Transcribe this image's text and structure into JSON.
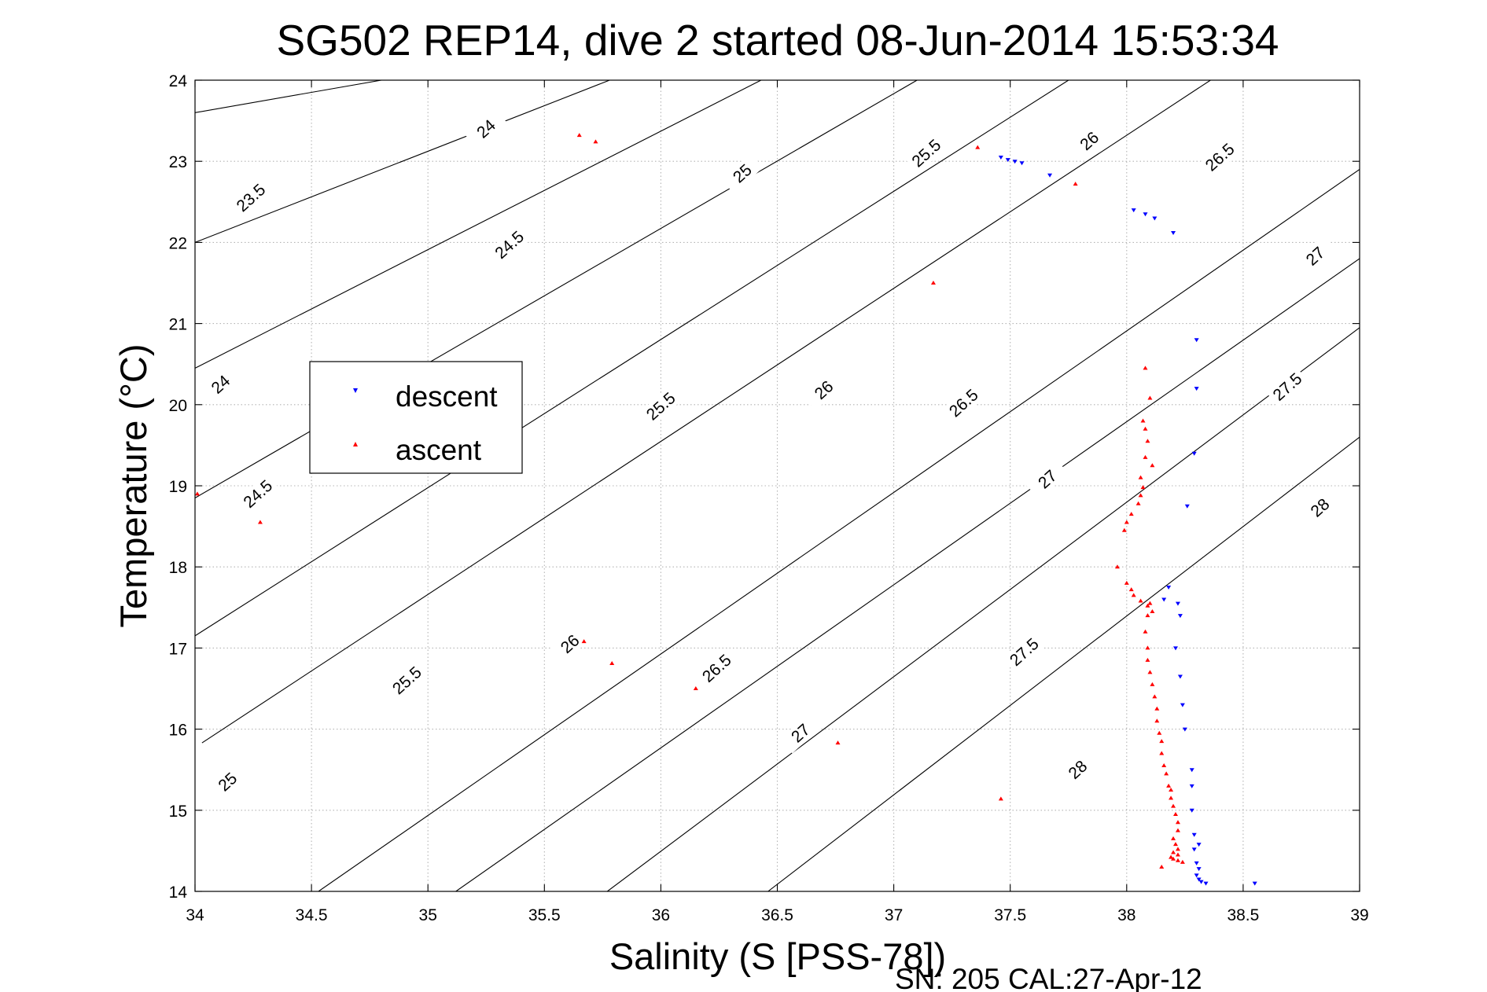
{
  "chart_data": {
    "type": "scatter",
    "title": "SG502 REP14, dive 2 started 08-Jun-2014 15:53:34",
    "xlabel": "Salinity (S [PSS-78])",
    "ylabel": "Temperature (°C)",
    "xlim": [
      34,
      39
    ],
    "ylim": [
      14,
      24
    ],
    "xticks": [
      "34",
      "34.5",
      "35",
      "35.5",
      "36",
      "36.5",
      "37",
      "37.5",
      "38",
      "38.5",
      "39"
    ],
    "yticks": [
      "14",
      "15",
      "16",
      "17",
      "18",
      "19",
      "20",
      "21",
      "22",
      "23",
      "24"
    ],
    "grid": true,
    "legend_position": "center-left",
    "footer": "SN: 205  CAL:27-Apr-12",
    "density_contours": [
      {
        "label": "23.5",
        "points": [
          [
            34.0,
            23.6
          ],
          [
            34.8,
            24.0
          ]
        ]
      },
      {
        "label": "24",
        "points": [
          [
            34.0,
            22.0
          ],
          [
            35.78,
            24.0
          ]
        ]
      },
      {
        "label": "24.5",
        "points": [
          [
            34.0,
            20.45
          ],
          [
            36.43,
            24.0
          ]
        ]
      },
      {
        "label": "25",
        "points": [
          [
            34.0,
            18.85
          ],
          [
            37.1,
            24.0
          ]
        ]
      },
      {
        "label": "25.5",
        "points": [
          [
            34.0,
            17.15
          ],
          [
            37.75,
            24.0
          ]
        ]
      },
      {
        "label": "26",
        "points": [
          [
            34.03,
            15.83
          ],
          [
            38.36,
            24.0
          ]
        ]
      },
      {
        "label": "26.5",
        "points": [
          [
            34.53,
            14.0
          ],
          [
            39.0,
            22.9
          ]
        ]
      },
      {
        "label": "27",
        "points": [
          [
            35.12,
            14.0
          ],
          [
            39.0,
            21.8
          ]
        ]
      },
      {
        "label": "27.5",
        "points": [
          [
            35.77,
            14.0
          ],
          [
            39.0,
            20.95
          ]
        ]
      },
      {
        "label": "28",
        "points": [
          [
            36.46,
            14.0
          ],
          [
            39.0,
            19.6
          ]
        ]
      }
    ],
    "contour_labels": [
      {
        "text": "23.5",
        "x": 34.24,
        "y": 22.55
      },
      {
        "text": "24",
        "x": 35.25,
        "y": 23.4
      },
      {
        "text": "24",
        "x": 34.11,
        "y": 20.25
      },
      {
        "text": "24.5",
        "x": 35.35,
        "y": 21.97
      },
      {
        "text": "24.5",
        "x": 34.27,
        "y": 18.9
      },
      {
        "text": "25",
        "x": 36.35,
        "y": 22.85
      },
      {
        "text": "25",
        "x": 34.14,
        "y": 15.35
      },
      {
        "text": "25.5",
        "x": 37.14,
        "y": 23.1
      },
      {
        "text": "25.5",
        "x": 36.0,
        "y": 19.98
      },
      {
        "text": "25.5",
        "x": 34.91,
        "y": 16.6
      },
      {
        "text": "26",
        "x": 37.84,
        "y": 23.25
      },
      {
        "text": "26",
        "x": 36.7,
        "y": 20.18
      },
      {
        "text": "26",
        "x": 35.61,
        "y": 17.05
      },
      {
        "text": "26.5",
        "x": 38.4,
        "y": 23.05
      },
      {
        "text": "26.5",
        "x": 37.3,
        "y": 20.02
      },
      {
        "text": "26.5",
        "x": 36.24,
        "y": 16.75
      },
      {
        "text": "27",
        "x": 38.81,
        "y": 21.83
      },
      {
        "text": "27",
        "x": 37.66,
        "y": 19.08
      },
      {
        "text": "27",
        "x": 36.6,
        "y": 15.95
      },
      {
        "text": "27.5",
        "x": 38.69,
        "y": 20.22
      },
      {
        "text": "27.5",
        "x": 37.56,
        "y": 16.95
      },
      {
        "text": "28",
        "x": 38.83,
        "y": 18.73
      },
      {
        "text": "28",
        "x": 37.79,
        "y": 15.5
      }
    ],
    "series": [
      {
        "name": "descent",
        "color": "#0000ff",
        "marker": "triangle-down",
        "points": [
          [
            37.46,
            23.05
          ],
          [
            37.49,
            23.02
          ],
          [
            37.52,
            23.0
          ],
          [
            37.55,
            22.98
          ],
          [
            37.67,
            22.83
          ],
          [
            38.03,
            22.4
          ],
          [
            38.08,
            22.35
          ],
          [
            38.12,
            22.3
          ],
          [
            38.2,
            22.12
          ],
          [
            38.3,
            20.8
          ],
          [
            38.3,
            20.2
          ],
          [
            38.29,
            19.4
          ],
          [
            38.26,
            18.75
          ],
          [
            38.18,
            17.75
          ],
          [
            38.22,
            17.55
          ],
          [
            38.23,
            17.4
          ],
          [
            38.16,
            17.6
          ],
          [
            38.21,
            17.0
          ],
          [
            38.23,
            16.65
          ],
          [
            38.24,
            16.3
          ],
          [
            38.25,
            16.0
          ],
          [
            38.28,
            15.5
          ],
          [
            38.28,
            15.3
          ],
          [
            38.28,
            15.0
          ],
          [
            38.29,
            14.7
          ],
          [
            38.31,
            14.58
          ],
          [
            38.29,
            14.52
          ],
          [
            38.3,
            14.35
          ],
          [
            38.31,
            14.28
          ],
          [
            38.3,
            14.2
          ],
          [
            38.31,
            14.15
          ],
          [
            38.32,
            14.12
          ],
          [
            38.34,
            14.1
          ],
          [
            38.55,
            14.1
          ]
        ]
      },
      {
        "name": "ascent",
        "color": "#ff0000",
        "marker": "triangle-up",
        "points": [
          [
            35.65,
            23.32
          ],
          [
            35.72,
            23.24
          ],
          [
            37.36,
            23.17
          ],
          [
            37.78,
            22.72
          ],
          [
            37.17,
            21.5
          ],
          [
            34.01,
            18.9
          ],
          [
            34.28,
            18.55
          ],
          [
            35.67,
            17.08
          ],
          [
            35.79,
            16.81
          ],
          [
            36.15,
            16.5
          ],
          [
            36.76,
            15.83
          ],
          [
            37.46,
            15.14
          ],
          [
            38.08,
            20.45
          ],
          [
            38.1,
            20.08
          ],
          [
            38.07,
            19.8
          ],
          [
            38.08,
            19.7
          ],
          [
            38.09,
            19.55
          ],
          [
            38.08,
            19.35
          ],
          [
            38.11,
            19.25
          ],
          [
            38.06,
            19.1
          ],
          [
            38.07,
            18.98
          ],
          [
            38.06,
            18.88
          ],
          [
            38.05,
            18.78
          ],
          [
            38.02,
            18.65
          ],
          [
            38.0,
            18.55
          ],
          [
            37.99,
            18.45
          ],
          [
            37.96,
            18.0
          ],
          [
            38.0,
            17.8
          ],
          [
            38.02,
            17.72
          ],
          [
            38.03,
            17.65
          ],
          [
            38.06,
            17.58
          ],
          [
            38.09,
            17.52
          ],
          [
            38.1,
            17.55
          ],
          [
            38.11,
            17.45
          ],
          [
            38.09,
            17.4
          ],
          [
            38.08,
            17.2
          ],
          [
            38.09,
            17.0
          ],
          [
            38.09,
            16.85
          ],
          [
            38.1,
            16.7
          ],
          [
            38.11,
            16.55
          ],
          [
            38.12,
            16.4
          ],
          [
            38.13,
            16.25
          ],
          [
            38.13,
            16.1
          ],
          [
            38.14,
            15.95
          ],
          [
            38.15,
            15.85
          ],
          [
            38.15,
            15.7
          ],
          [
            38.16,
            15.55
          ],
          [
            38.17,
            15.45
          ],
          [
            38.18,
            15.3
          ],
          [
            38.19,
            15.25
          ],
          [
            38.19,
            15.15
          ],
          [
            38.2,
            15.05
          ],
          [
            38.21,
            14.95
          ],
          [
            38.22,
            14.85
          ],
          [
            38.22,
            14.75
          ],
          [
            38.2,
            14.65
          ],
          [
            38.21,
            14.58
          ],
          [
            38.22,
            14.52
          ],
          [
            38.2,
            14.48
          ],
          [
            38.22,
            14.45
          ],
          [
            38.2,
            14.4
          ],
          [
            38.22,
            14.38
          ],
          [
            38.24,
            14.36
          ],
          [
            38.19,
            14.42
          ],
          [
            38.15,
            14.3
          ]
        ]
      }
    ]
  }
}
